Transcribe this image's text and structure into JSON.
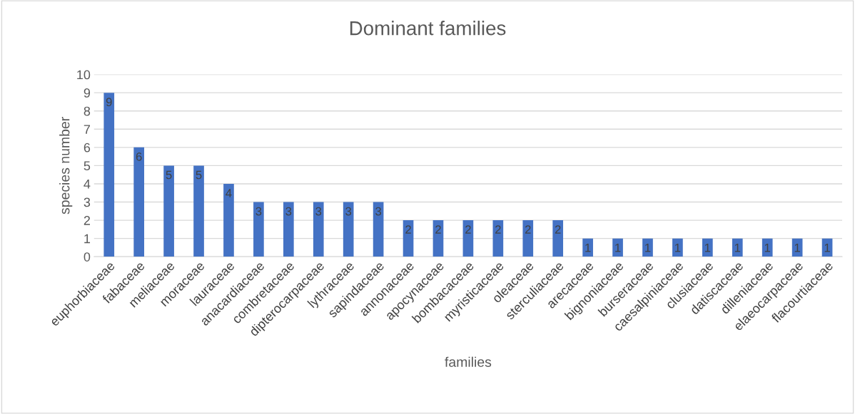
{
  "chart_data": {
    "type": "bar",
    "title": "Dominant families",
    "xlabel": "families",
    "ylabel": "species number",
    "categories": [
      "euphorbiaceae",
      "fabaceae",
      "meliaceae",
      "moraceae",
      "lauraceae",
      "anacardiaceae",
      "combretaceae",
      "dipterocarpaceae",
      "lythraceae",
      "sapindaceae",
      "annonaceae",
      "apocynaceae",
      "bombacaceae",
      "myristicaceae",
      "oleaceae",
      "sterculiaceae",
      "arecaceae",
      "bignoniaceae",
      "burseraceae",
      "caesalpiniaceae",
      "clusiaceae",
      "datiscaceae",
      "dilleniaceae",
      "elaeocarpaceae",
      "flacourtiaceae"
    ],
    "values": [
      9,
      6,
      5,
      5,
      4,
      3,
      3,
      3,
      3,
      3,
      2,
      2,
      2,
      2,
      2,
      2,
      1,
      1,
      1,
      1,
      1,
      1,
      1,
      1,
      1
    ],
    "color": "#4472c4",
    "ylim": [
      0,
      10
    ],
    "yticks": [
      0,
      1,
      2,
      3,
      4,
      5,
      6,
      7,
      8,
      9,
      10
    ],
    "grid": "y",
    "data_labels": true
  }
}
